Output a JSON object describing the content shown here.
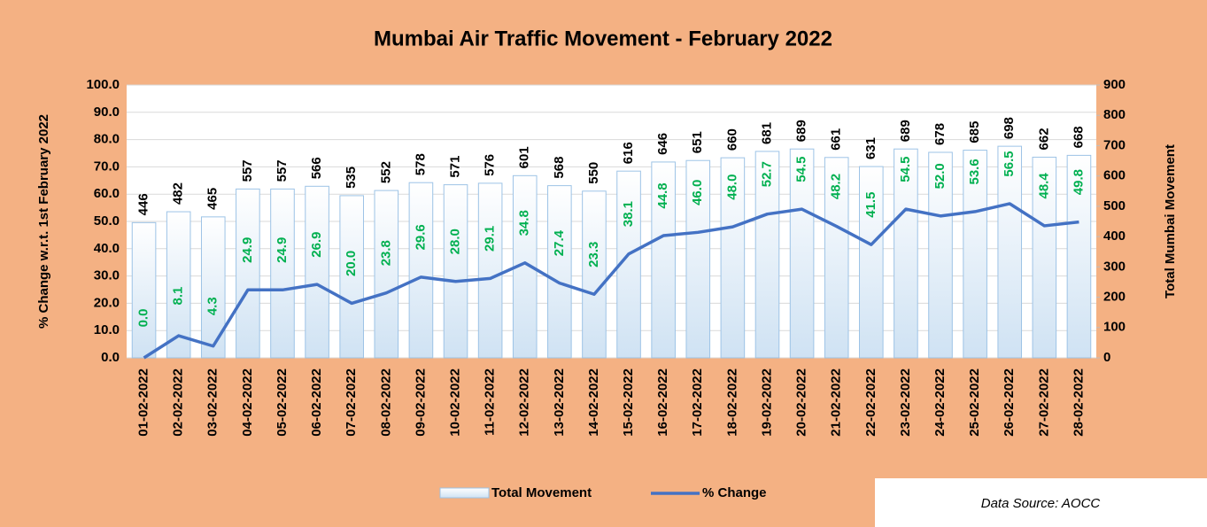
{
  "chart_data": {
    "type": "bar",
    "title": "Mumbai Air Traffic Movement - February 2022",
    "ylabel": "% Change  w.r.t. 1st February 2022",
    "y2label": "Total Mumbai Movement",
    "source": "Data Source: AOCC",
    "categories": [
      "01-02-2022",
      "02-02-2022",
      "03-02-2022",
      "04-02-2022",
      "05-02-2022",
      "06-02-2022",
      "07-02-2022",
      "08-02-2022",
      "09-02-2022",
      "10-02-2022",
      "11-02-2022",
      "12-02-2022",
      "13-02-2022",
      "14-02-2022",
      "15-02-2022",
      "16-02-2022",
      "17-02-2022",
      "18-02-2022",
      "19-02-2022",
      "20-02-2022",
      "21-02-2022",
      "22-02-2022",
      "23-02-2022",
      "24-02-2022",
      "25-02-2022",
      "26-02-2022",
      "27-02-2022",
      "28-02-2022"
    ],
    "series": [
      {
        "name": "Total Movement",
        "type": "bar",
        "axis": "y2",
        "color": "#deebf7",
        "values": [
          446,
          482,
          465,
          557,
          557,
          566,
          535,
          552,
          578,
          571,
          576,
          601,
          568,
          550,
          616,
          646,
          651,
          660,
          681,
          689,
          661,
          631,
          689,
          678,
          685,
          698,
          662,
          668
        ]
      },
      {
        "name": "% Change",
        "type": "line",
        "color": "#4472c4",
        "values": [
          0.0,
          8.1,
          4.3,
          24.9,
          24.9,
          26.9,
          20.0,
          23.8,
          29.6,
          28.0,
          29.1,
          34.8,
          27.4,
          23.3,
          38.1,
          44.8,
          46.0,
          48.0,
          52.7,
          54.5,
          48.2,
          41.5,
          54.5,
          52.0,
          53.6,
          56.5,
          48.4,
          49.8
        ],
        "value_labels": [
          "0.0",
          "8.1",
          "4.3",
          "24.9",
          "24.9",
          "26.9",
          "20.0",
          "23.8",
          "29.6",
          "28.0",
          "29.1",
          "34.8",
          "27.4",
          "23.3",
          "38.1",
          "44.8",
          "46.0",
          "48.0",
          "52.7",
          "54.5",
          "48.2",
          "41.5",
          "54.5",
          "52.0",
          "53.6",
          "56.5",
          "48.4",
          "49.8"
        ]
      }
    ],
    "ylim": [
      0,
      100
    ],
    "yticks": [
      {
        "value": 0,
        "label": "0.0"
      },
      {
        "value": 10,
        "label": "10.0"
      },
      {
        "value": 20,
        "label": "20.0"
      },
      {
        "value": 30,
        "label": "30.0"
      },
      {
        "value": 40,
        "label": "40.0"
      },
      {
        "value": 50,
        "label": "50.0"
      },
      {
        "value": 60,
        "label": "60.0"
      },
      {
        "value": 70,
        "label": "70.0"
      },
      {
        "value": 80,
        "label": "80.0"
      },
      {
        "value": 90,
        "label": "90.0"
      },
      {
        "value": 100,
        "label": "100.0"
      }
    ],
    "y2lim": [
      0,
      900
    ],
    "y2ticks": [
      0,
      100,
      200,
      300,
      400,
      500,
      600,
      700,
      800,
      900
    ],
    "grid": true,
    "legend": "bottom"
  }
}
